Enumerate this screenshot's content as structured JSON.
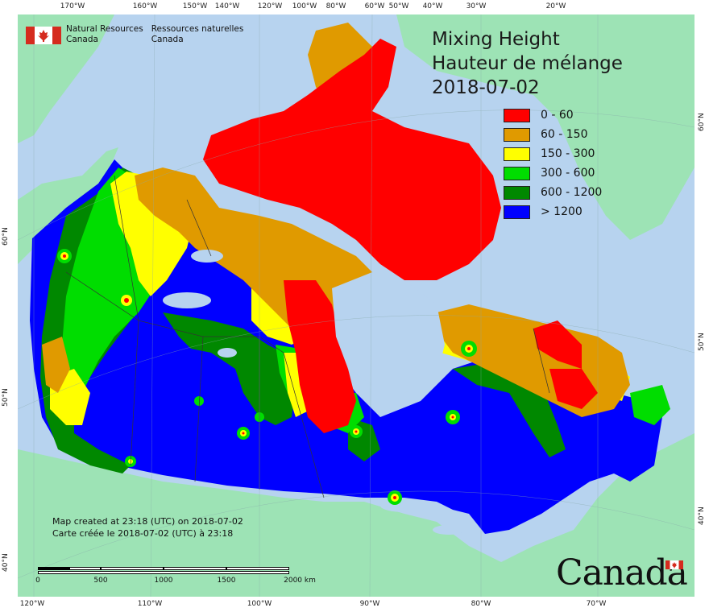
{
  "title": {
    "line1": "Mixing Height",
    "line2": "Hauteur de mélange",
    "date": "2018-07-02"
  },
  "legend": {
    "items": [
      {
        "label": "0 - 60",
        "color": "#ff0000"
      },
      {
        "label": "60 - 150",
        "color": "#e09a00"
      },
      {
        "label": "150 - 300",
        "color": "#ffff00"
      },
      {
        "label": "300 - 600",
        "color": "#00dd00"
      },
      {
        "label": "600 - 1200",
        "color": "#008800"
      },
      {
        "label": "> 1200",
        "color": "#0000ff"
      }
    ]
  },
  "organization": {
    "name_en_1": "Natural Resources",
    "name_en_2": "Canada",
    "name_fr_1": "Ressources naturelles",
    "name_fr_2": "Canada"
  },
  "footer": {
    "created_en": "Map created at 23:18 (UTC) on 2018-07-02",
    "created_fr": "Carte créée le 2018-07-02 (UTC) à 23:18",
    "scale_labels": [
      "0",
      "500",
      "1000",
      "1500",
      "2000  km"
    ],
    "wordmark": "Canada"
  },
  "graticule": {
    "top_ticks": [
      "170°W",
      "160°W",
      "150°W",
      "140°W",
      "120°W",
      "100°W",
      "80°W",
      "60°W",
      "50°W",
      "40°W",
      "30°W",
      "20°W"
    ],
    "bottom_ticks": [
      "120°W",
      "110°W",
      "100°W",
      "90°W",
      "80°W",
      "70°W"
    ],
    "left_ticks": [
      "60°N",
      "50°N",
      "40°N"
    ],
    "right_ticks": [
      "60°N",
      "50°N",
      "40°N"
    ]
  },
  "colors": {
    "ocean": "#b7d3ef",
    "land_outside": "#9de3b5",
    "red": "#ff0000",
    "orange": "#e09a00",
    "yellow": "#ffff00",
    "lightgreen": "#00dd00",
    "darkgreen": "#008800",
    "blue": "#0000ff"
  }
}
